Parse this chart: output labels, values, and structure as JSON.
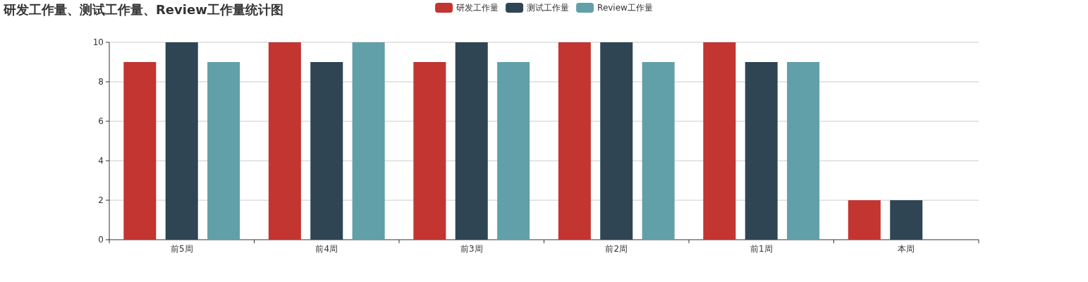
{
  "chart_data": {
    "type": "bar",
    "title": "研发工作量、测试工作量、Review工作量统计图",
    "categories": [
      "前5周",
      "前4周",
      "前3周",
      "前2周",
      "前1周",
      "本周"
    ],
    "series": [
      {
        "name": "研发工作量",
        "color": "#c23531",
        "values": [
          9,
          10,
          9,
          10,
          10,
          2
        ]
      },
      {
        "name": "测试工作量",
        "color": "#2f4554",
        "values": [
          10,
          9,
          10,
          10,
          9,
          2
        ]
      },
      {
        "name": "Review工作量",
        "color": "#61a0a8",
        "values": [
          9,
          10,
          9,
          9,
          9,
          0
        ]
      }
    ],
    "ylim": [
      0,
      10
    ],
    "yticks": [
      0,
      2,
      4,
      6,
      8,
      10
    ],
    "grid": "y",
    "legend": "top"
  }
}
